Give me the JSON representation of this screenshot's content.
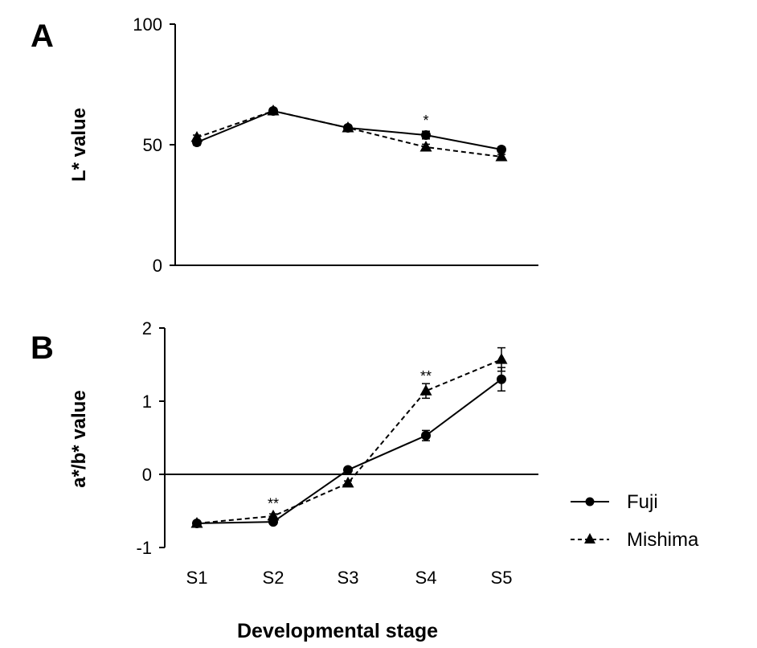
{
  "figure": {
    "xlabel": "Developmental stage",
    "legend": {
      "position": "bottom-right",
      "entries": [
        {
          "name": "Fuji",
          "marker": "circle",
          "line": "solid"
        },
        {
          "name": "Mishima",
          "marker": "triangle",
          "line": "dashed"
        }
      ]
    }
  },
  "chart_data": [
    {
      "type": "line",
      "panel": "A",
      "ylabel": "L* value",
      "ylim": [
        0,
        100
      ],
      "yticks": [
        "0",
        "50",
        "100"
      ],
      "categories": [
        "S1",
        "S2",
        "S3",
        "S4",
        "S5"
      ],
      "series": [
        {
          "name": "Fuji",
          "values": [
            51,
            64,
            57,
            54,
            48
          ],
          "errors": [
            1.2,
            1.0,
            1.0,
            1.6,
            1.0
          ]
        },
        {
          "name": "Mishima",
          "values": [
            53,
            64,
            57,
            49,
            45
          ],
          "errors": [
            1.0,
            1.0,
            1.0,
            1.2,
            1.0
          ]
        }
      ],
      "annotations": [
        {
          "category": "S4",
          "text": "*",
          "y": 60
        }
      ],
      "grid": false
    },
    {
      "type": "line",
      "panel": "B",
      "ylabel": "a*/b* value",
      "ylim": [
        -1,
        2
      ],
      "yticks": [
        "-1",
        "0",
        "1",
        "2"
      ],
      "categories": [
        "S1",
        "S2",
        "S3",
        "S4",
        "S5"
      ],
      "series": [
        {
          "name": "Fuji",
          "values": [
            -0.67,
            -0.65,
            0.06,
            0.53,
            1.3
          ],
          "errors": [
            0.02,
            0.03,
            0.03,
            0.07,
            0.16
          ]
        },
        {
          "name": "Mishima",
          "values": [
            -0.67,
            -0.57,
            -0.12,
            1.14,
            1.57
          ],
          "errors": [
            0.02,
            0.03,
            0.03,
            0.1,
            0.16
          ]
        }
      ],
      "zero_line": true,
      "annotations": [
        {
          "category": "S2",
          "text": "**",
          "y": -0.4
        },
        {
          "category": "S4",
          "text": "**",
          "y": 1.34
        }
      ],
      "grid": false
    }
  ],
  "style": {
    "line_color": "#000000",
    "background": "#ffffff"
  }
}
